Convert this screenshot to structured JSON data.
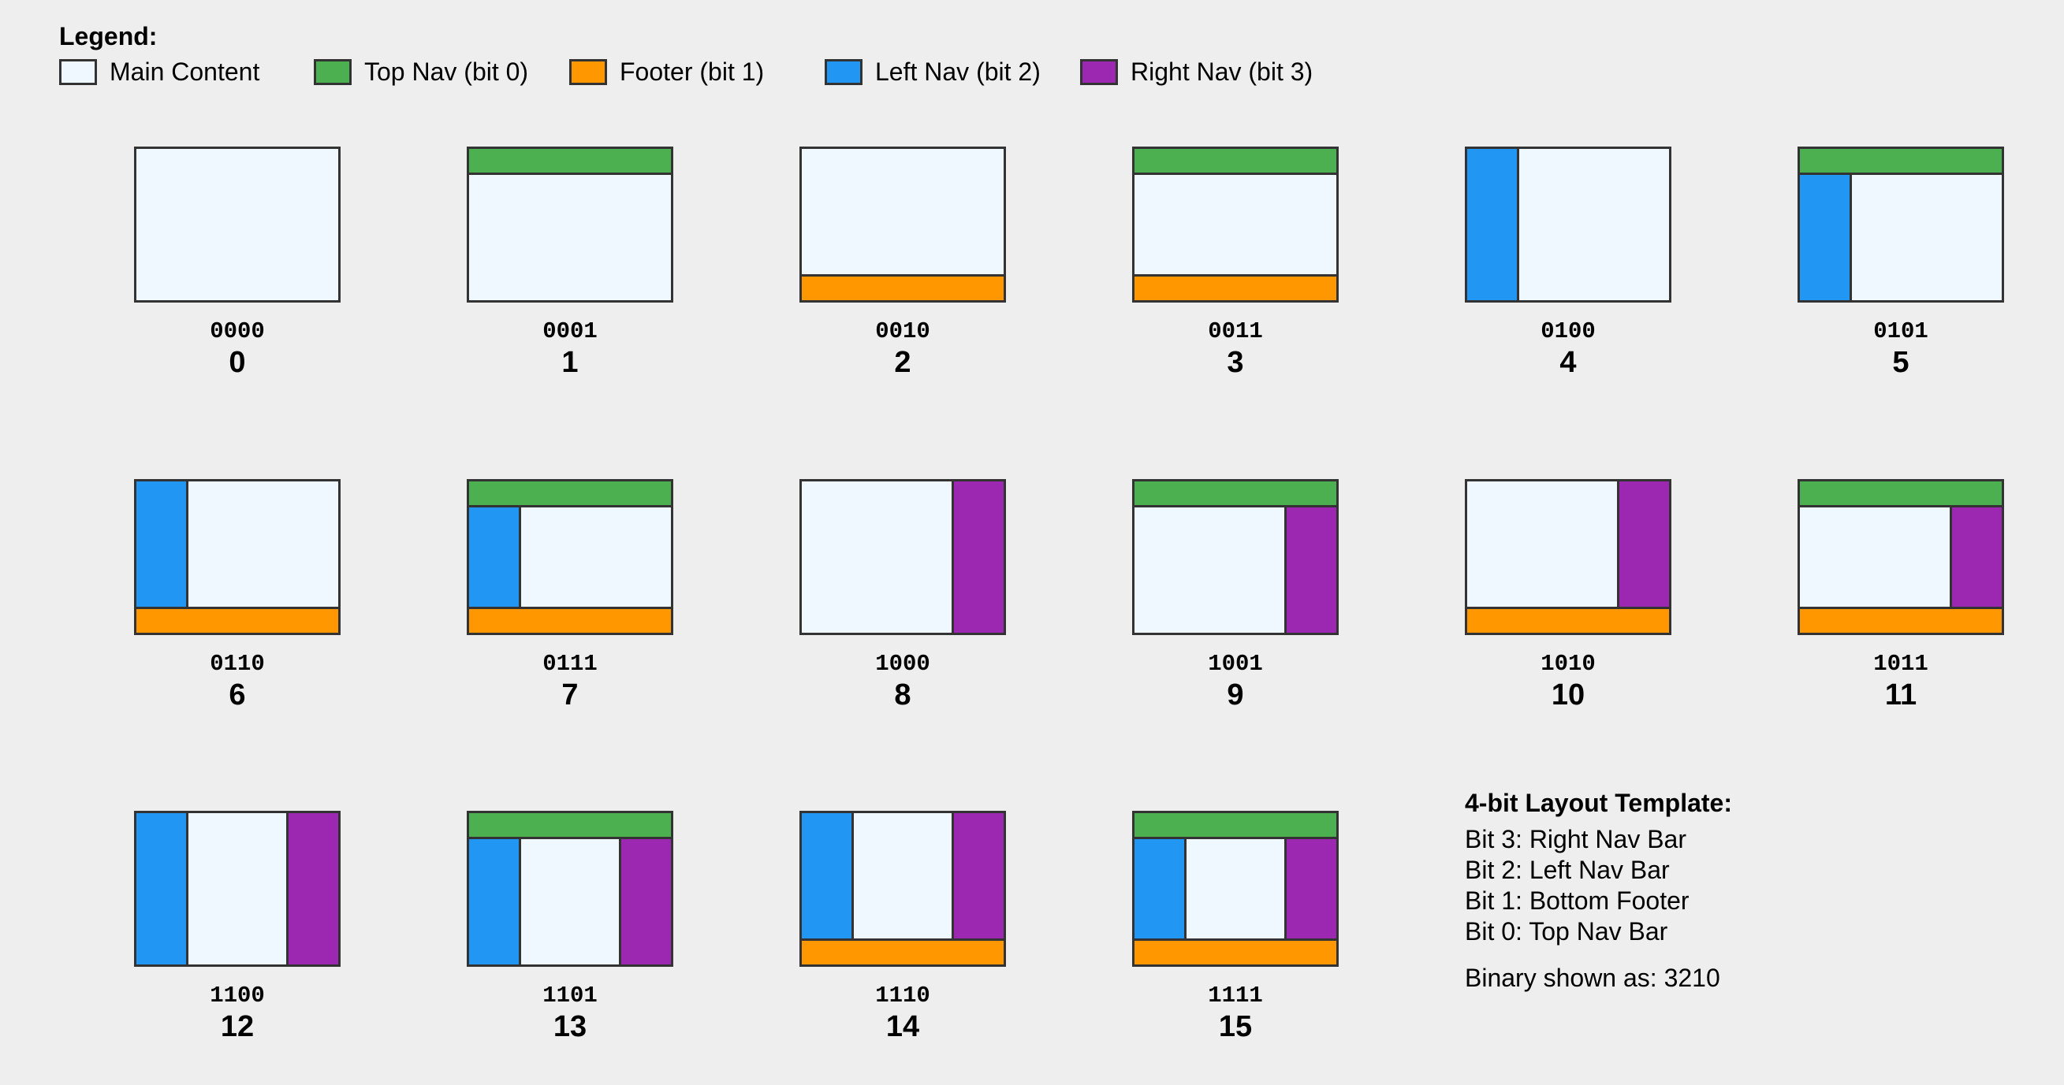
{
  "legend": {
    "title": "Legend:",
    "items": [
      {
        "key": "main",
        "label": "Main Content",
        "color": "#f0f8ff"
      },
      {
        "key": "top",
        "label": "Top Nav (bit 0)",
        "color": "#4caf50"
      },
      {
        "key": "footer",
        "label": "Footer (bit 1)",
        "color": "#ff9800"
      },
      {
        "key": "left",
        "label": "Left Nav (bit 2)",
        "color": "#2196f3"
      },
      {
        "key": "right",
        "label": "Right Nav (bit 3)",
        "color": "#9c27b0"
      }
    ]
  },
  "layouts": [
    {
      "binary": "0000",
      "decimal": "0"
    },
    {
      "binary": "0001",
      "decimal": "1"
    },
    {
      "binary": "0010",
      "decimal": "2"
    },
    {
      "binary": "0011",
      "decimal": "3"
    },
    {
      "binary": "0100",
      "decimal": "4"
    },
    {
      "binary": "0101",
      "decimal": "5"
    },
    {
      "binary": "0110",
      "decimal": "6"
    },
    {
      "binary": "0111",
      "decimal": "7"
    },
    {
      "binary": "1000",
      "decimal": "8"
    },
    {
      "binary": "1001",
      "decimal": "9"
    },
    {
      "binary": "1010",
      "decimal": "10"
    },
    {
      "binary": "1011",
      "decimal": "11"
    },
    {
      "binary": "1100",
      "decimal": "12"
    },
    {
      "binary": "1101",
      "decimal": "13"
    },
    {
      "binary": "1110",
      "decimal": "14"
    },
    {
      "binary": "1111",
      "decimal": "15"
    }
  ],
  "info": {
    "title": "4-bit Layout Template:",
    "lines": [
      "Bit 3: Right Nav Bar",
      "Bit 2: Left Nav Bar",
      "Bit 1: Bottom Footer",
      "Bit 0: Top Nav Bar"
    ],
    "note": "Binary shown as: 3210"
  }
}
